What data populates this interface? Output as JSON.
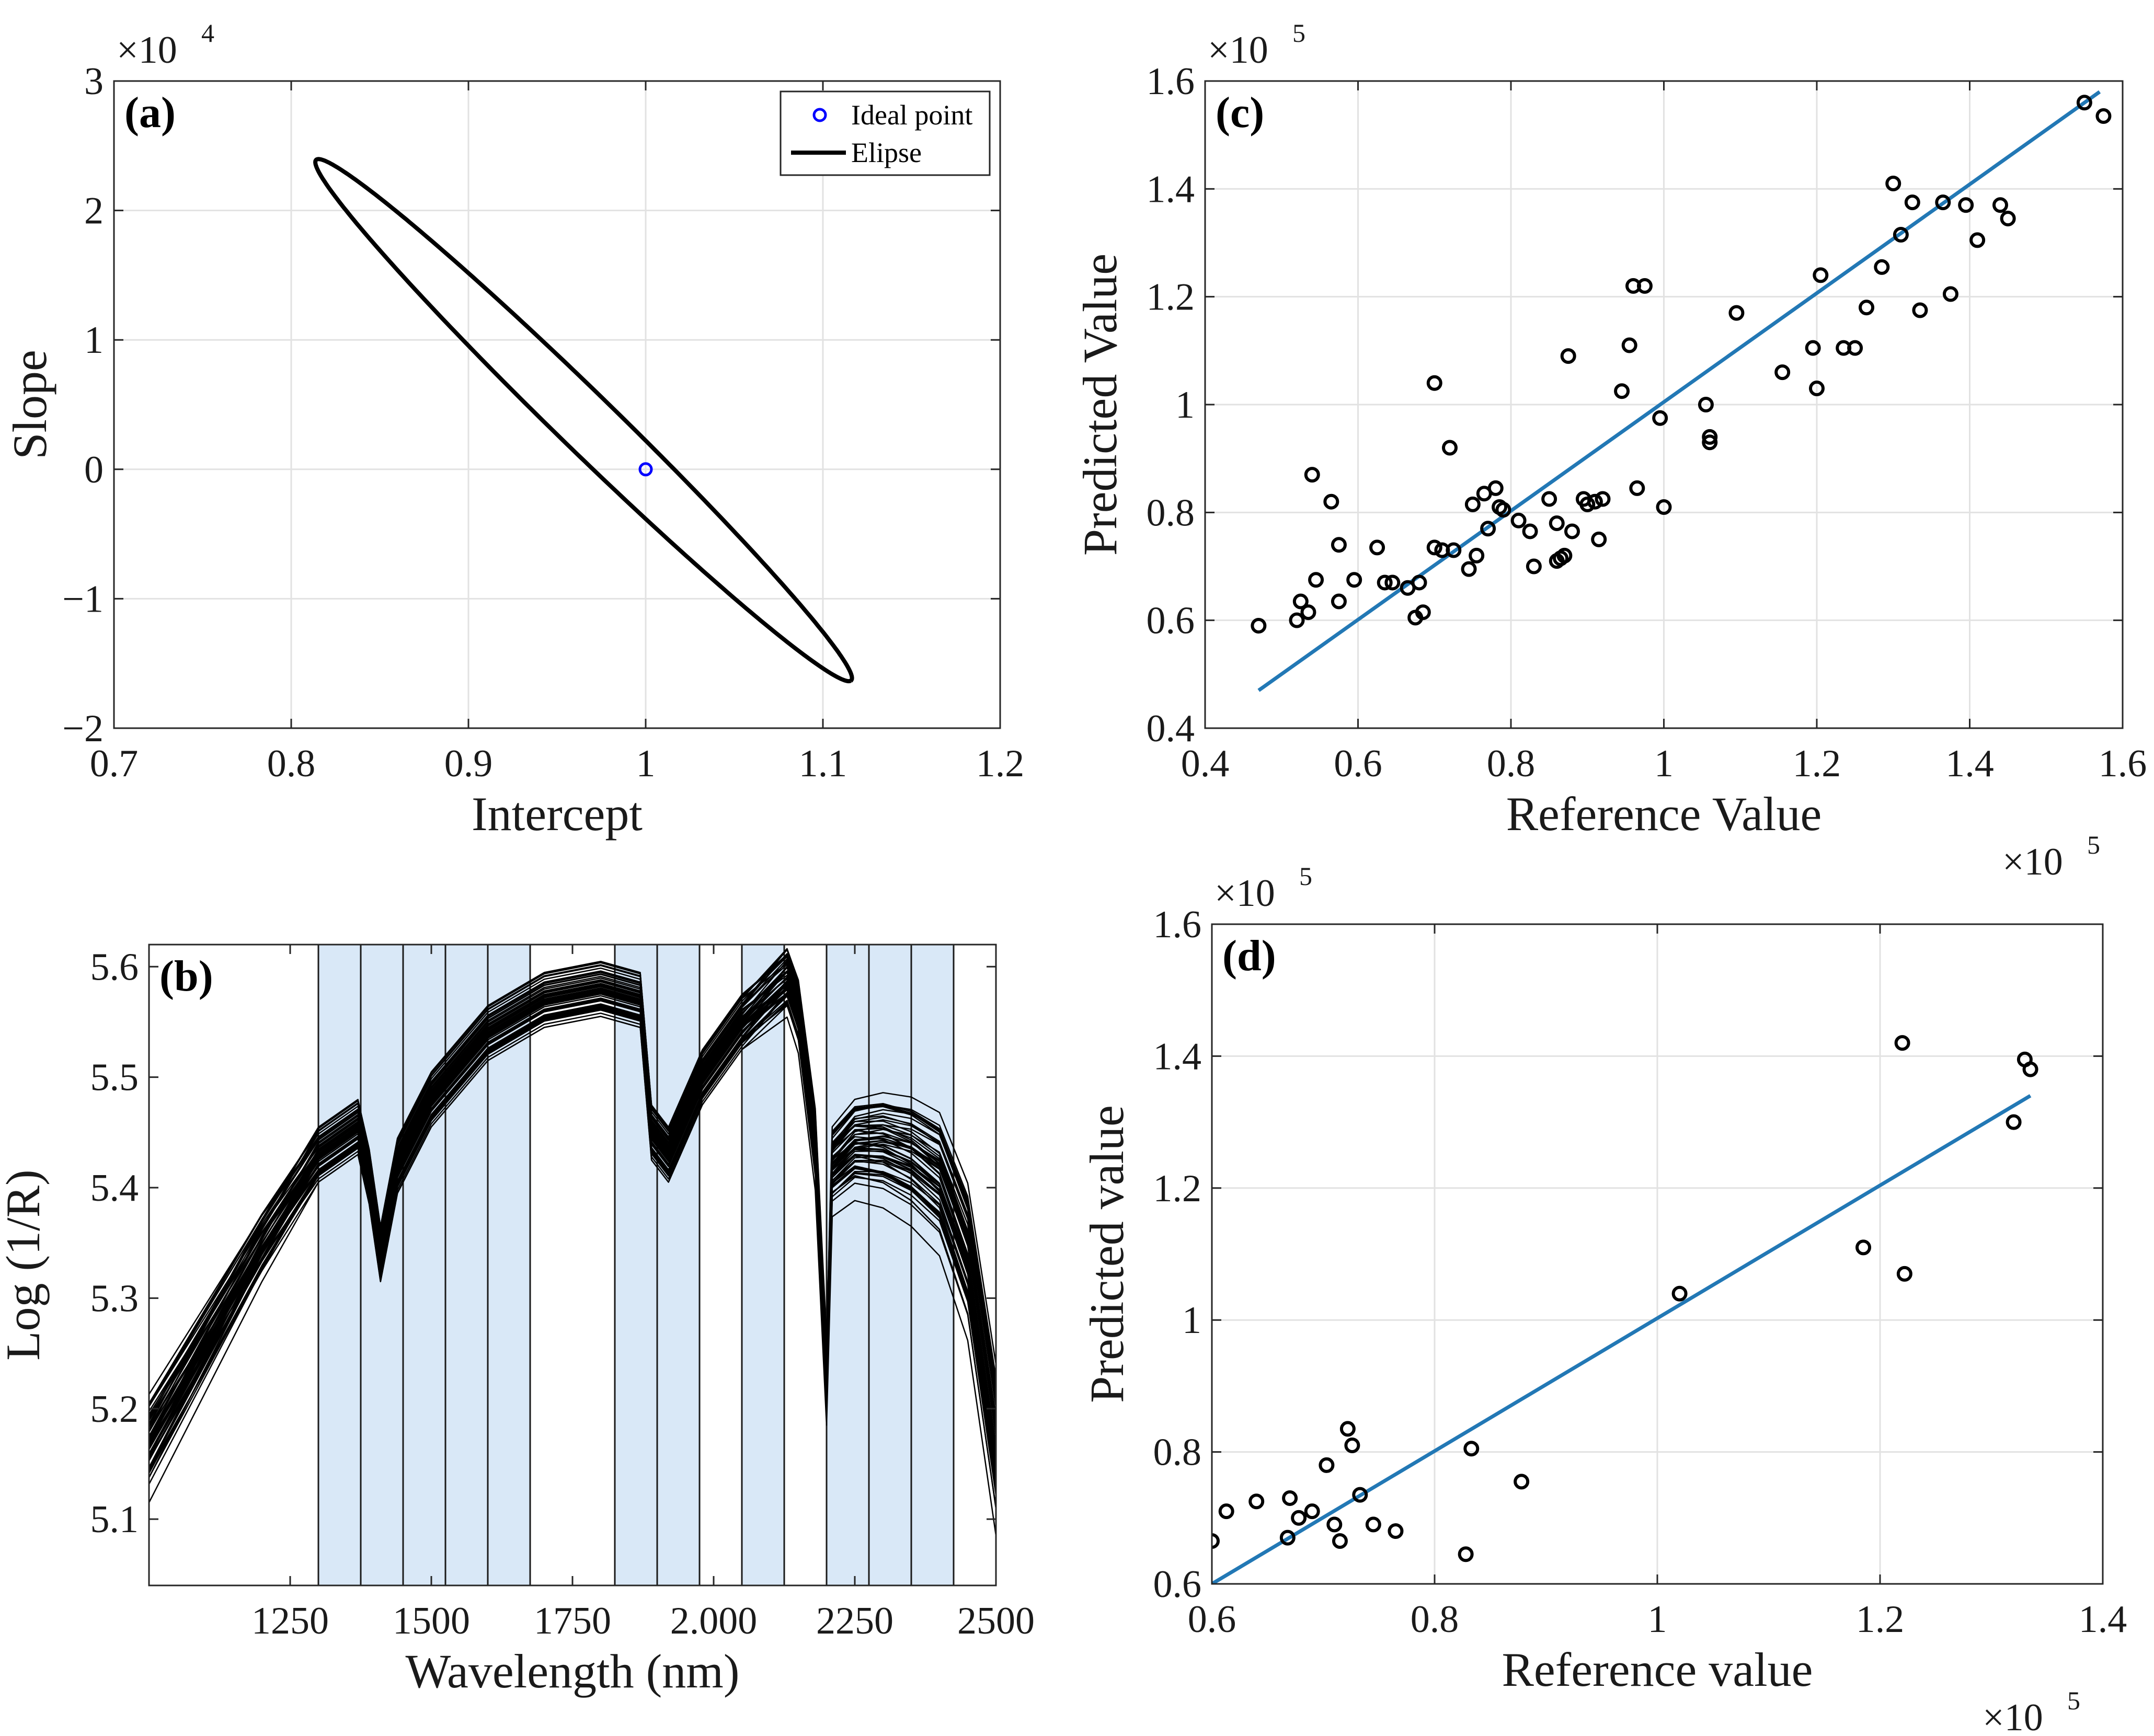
{
  "chart_data": [
    {
      "id": "a",
      "type": "line",
      "panel_label": "(a)",
      "xlabel": "Intercept",
      "ylabel": "Slope",
      "xlim": [
        0.7,
        1.2
      ],
      "ylim": [
        -2,
        3
      ],
      "y_exponent": "4",
      "xticks": [
        0.7,
        0.8,
        0.9,
        1,
        1.1,
        1.2
      ],
      "yticks": [
        -2,
        -1,
        0,
        1,
        2,
        3
      ],
      "grid": true,
      "legend_position": "top-right",
      "legend": [
        {
          "label": "Ideal point",
          "marker": "circle",
          "color": "#0000ff"
        },
        {
          "label": "Elipse",
          "marker": "line",
          "color": "#000000"
        }
      ],
      "ideal_point": {
        "x": 1,
        "y": 0
      },
      "ellipse": {
        "center": [
          0.965,
          0.38
        ],
        "semi_major": 0.2515,
        "semi_minor": 0.0187,
        "angle_deg": -53.2,
        "color": "#000000"
      }
    },
    {
      "id": "b",
      "type": "line",
      "panel_label": "(b)",
      "xlabel": "Wavelength (nm)",
      "ylabel": "Log (1/R)",
      "xlim": [
        1000,
        2500
      ],
      "ylim": [
        5.04,
        5.62
      ],
      "xticks": [
        1250,
        1500,
        1750,
        2000,
        2250,
        2500
      ],
      "xtick_labels": [
        "1250",
        "1500",
        "1750",
        "2.000",
        "2250",
        "2500"
      ],
      "yticks": [
        5.1,
        5.2,
        5.3,
        5.4,
        5.5,
        5.6
      ],
      "grid": false,
      "shaded_intervals": [
        [
          1300,
          1675
        ],
        [
          1825,
          1975
        ],
        [
          2050,
          2125
        ],
        [
          2200,
          2425
        ]
      ],
      "interval_lines": [
        1300,
        1375,
        1450,
        1525,
        1600,
        1675,
        1825,
        1900,
        1975,
        2050,
        2125,
        2200,
        2275,
        2350,
        2425
      ],
      "shade_color": "#d9e8f7",
      "line_color": "#000000",
      "series_count": 60,
      "representative_spectrum": {
        "x": [
          1000,
          1100,
          1200,
          1300,
          1370,
          1390,
          1410,
          1440,
          1500,
          1600,
          1700,
          1800,
          1870,
          1890,
          1920,
          1980,
          2050,
          2130,
          2150,
          2180,
          2200,
          2210,
          2250,
          2300,
          2350,
          2400,
          2450,
          2500
        ],
        "y": [
          5.17,
          5.26,
          5.35,
          5.43,
          5.455,
          5.41,
          5.34,
          5.42,
          5.48,
          5.54,
          5.57,
          5.58,
          5.57,
          5.45,
          5.43,
          5.5,
          5.55,
          5.59,
          5.56,
          5.44,
          5.23,
          5.42,
          5.44,
          5.44,
          5.43,
          5.41,
          5.34,
          5.17
        ]
      }
    },
    {
      "id": "c",
      "type": "scatter",
      "panel_label": "(c)",
      "xlabel": "Reference Value",
      "ylabel": "Predicted Value",
      "xlim": [
        0.4,
        1.6
      ],
      "ylim": [
        0.4,
        1.6
      ],
      "x_exponent": "5",
      "y_exponent": "5",
      "xticks": [
        0.4,
        0.6,
        0.8,
        1,
        1.2,
        1.4,
        1.6
      ],
      "yticks": [
        0.4,
        0.6,
        0.8,
        1,
        1.2,
        1.4,
        1.6
      ],
      "grid": true,
      "marker_color": "#000000",
      "fit_line": {
        "x": [
          0.47,
          1.57
        ],
        "y": [
          0.47,
          1.58
        ],
        "color": "#2278b5"
      },
      "points": [
        [
          0.47,
          0.59
        ],
        [
          0.52,
          0.6
        ],
        [
          0.525,
          0.635
        ],
        [
          0.535,
          0.615
        ],
        [
          0.54,
          0.87
        ],
        [
          0.545,
          0.675
        ],
        [
          0.565,
          0.82
        ],
        [
          0.575,
          0.74
        ],
        [
          0.575,
          0.635
        ],
        [
          0.595,
          0.675
        ],
        [
          0.625,
          0.735
        ],
        [
          0.635,
          0.67
        ],
        [
          0.645,
          0.67
        ],
        [
          0.665,
          0.66
        ],
        [
          0.675,
          0.605
        ],
        [
          0.68,
          0.67
        ],
        [
          0.685,
          0.615
        ],
        [
          0.7,
          0.735
        ],
        [
          0.7,
          1.04
        ],
        [
          0.71,
          0.73
        ],
        [
          0.72,
          0.92
        ],
        [
          0.725,
          0.73
        ],
        [
          0.745,
          0.695
        ],
        [
          0.75,
          0.815
        ],
        [
          0.755,
          0.72
        ],
        [
          0.765,
          0.835
        ],
        [
          0.77,
          0.77
        ],
        [
          0.78,
          0.845
        ],
        [
          0.785,
          0.81
        ],
        [
          0.79,
          0.805
        ],
        [
          0.81,
          0.785
        ],
        [
          0.825,
          0.765
        ],
        [
          0.83,
          0.7
        ],
        [
          0.85,
          0.825
        ],
        [
          0.86,
          0.78
        ],
        [
          0.86,
          0.71
        ],
        [
          0.865,
          0.715
        ],
        [
          0.87,
          0.72
        ],
        [
          0.875,
          1.09
        ],
        [
          0.88,
          0.765
        ],
        [
          0.895,
          0.825
        ],
        [
          0.9,
          0.815
        ],
        [
          0.91,
          0.82
        ],
        [
          0.915,
          0.75
        ],
        [
          0.92,
          0.825
        ],
        [
          0.945,
          1.025
        ],
        [
          0.955,
          1.11
        ],
        [
          0.96,
          1.22
        ],
        [
          0.965,
          0.845
        ],
        [
          0.975,
          1.22
        ],
        [
          0.995,
          0.975
        ],
        [
          1.0,
          0.81
        ],
        [
          1.055,
          1.0
        ],
        [
          1.06,
          0.93
        ],
        [
          1.06,
          0.94
        ],
        [
          1.095,
          1.17
        ],
        [
          1.155,
          1.06
        ],
        [
          1.195,
          1.105
        ],
        [
          1.2,
          1.03
        ],
        [
          1.205,
          1.24
        ],
        [
          1.235,
          1.105
        ],
        [
          1.25,
          1.105
        ],
        [
          1.265,
          1.18
        ],
        [
          1.285,
          1.255
        ],
        [
          1.3,
          1.41
        ],
        [
          1.31,
          1.315
        ],
        [
          1.325,
          1.375
        ],
        [
          1.335,
          1.175
        ],
        [
          1.365,
          1.375
        ],
        [
          1.375,
          1.205
        ],
        [
          1.395,
          1.37
        ],
        [
          1.41,
          1.305
        ],
        [
          1.44,
          1.37
        ],
        [
          1.45,
          1.345
        ],
        [
          1.55,
          1.56
        ],
        [
          1.575,
          1.535
        ]
      ]
    },
    {
      "id": "d",
      "type": "scatter",
      "panel_label": "(d)",
      "xlabel": "Reference value",
      "ylabel": "Predicted value",
      "xlim": [
        0.6,
        1.4
      ],
      "ylim": [
        0.6,
        1.6
      ],
      "x_exponent": "5",
      "y_exponent": "5",
      "xticks": [
        0.6,
        0.8,
        1,
        1.2,
        1.4
      ],
      "yticks": [
        0.6,
        0.8,
        1,
        1.2,
        1.4,
        1.6
      ],
      "grid": true,
      "marker_color": "#000000",
      "fit_line": {
        "x": [
          0.6,
          1.335
        ],
        "y": [
          0.6,
          1.34
        ],
        "color": "#2278b5"
      },
      "points": [
        [
          0.6,
          0.665
        ],
        [
          0.613,
          0.71
        ],
        [
          0.64,
          0.725
        ],
        [
          0.668,
          0.67
        ],
        [
          0.67,
          0.73
        ],
        [
          0.678,
          0.7
        ],
        [
          0.69,
          0.71
        ],
        [
          0.703,
          0.78
        ],
        [
          0.71,
          0.69
        ],
        [
          0.715,
          0.665
        ],
        [
          0.722,
          0.835
        ],
        [
          0.726,
          0.81
        ],
        [
          0.733,
          0.735
        ],
        [
          0.745,
          0.69
        ],
        [
          0.765,
          0.68
        ],
        [
          0.828,
          0.645
        ],
        [
          0.833,
          0.805
        ],
        [
          0.878,
          0.755
        ],
        [
          1.02,
          1.04
        ],
        [
          1.185,
          1.11
        ],
        [
          1.22,
          1.42
        ],
        [
          1.222,
          1.07
        ],
        [
          1.32,
          1.3
        ],
        [
          1.33,
          1.395
        ],
        [
          1.335,
          1.38
        ]
      ]
    }
  ]
}
